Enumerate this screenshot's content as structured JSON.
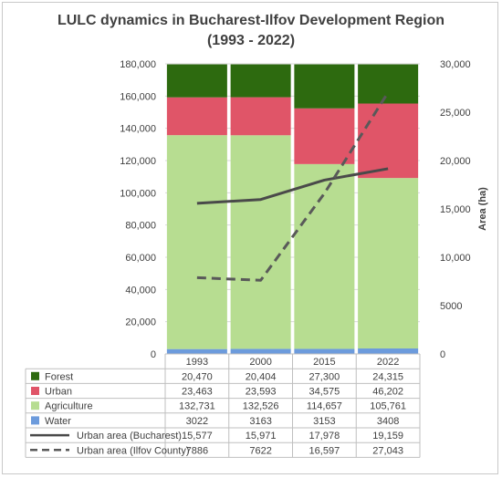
{
  "chart_data": {
    "type": "bar",
    "title": "LULC dynamics in Bucharest-Ilfov Development Region",
    "subtitle": "(1993 - 2022)",
    "categories": [
      "1993",
      "2000",
      "2015",
      "2022"
    ],
    "bar_series": [
      {
        "name": "Water",
        "values": [
          3022,
          3163,
          3153,
          3408
        ],
        "color": "#6c9bdc"
      },
      {
        "name": "Agriculture",
        "values": [
          132731,
          132526,
          114657,
          105761
        ],
        "color": "#b7dd91"
      },
      {
        "name": "Urban",
        "values": [
          23463,
          23593,
          34575,
          46202
        ],
        "color": "#e05568"
      },
      {
        "name": "Forest",
        "values": [
          20470,
          20404,
          27300,
          24315
        ],
        "color": "#2d6a0f"
      }
    ],
    "line_series": [
      {
        "name": "Urban area (Bucharest)",
        "values": [
          15577,
          15971,
          17978,
          19159
        ],
        "color": "#4a4a4a",
        "style": "solid",
        "axis": "right"
      },
      {
        "name": "Urban area (Ilfov County)",
        "values": [
          7886,
          7622,
          16597,
          27043
        ],
        "color": "#595959",
        "style": "dashed",
        "axis": "right"
      }
    ],
    "table_order": [
      "Forest",
      "Urban",
      "Agriculture",
      "Water",
      "Urban area (Bucharest)",
      "Urban area (Ilfov County)"
    ],
    "table_display": {
      "Forest": [
        "20,470",
        "20,404",
        "27,300",
        "24,315"
      ],
      "Urban": [
        "23,463",
        "23,593",
        "34,575",
        "46,202"
      ],
      "Agriculture": [
        "132,731",
        "132,526",
        "114,657",
        "105,761"
      ],
      "Water": [
        "3022",
        "3163",
        "3153",
        "3408"
      ],
      "Urban area (Bucharest)": [
        "15,577",
        "15,971",
        "17,978",
        "19,159"
      ],
      "Urban area (Ilfov County)": [
        "7886",
        "7622",
        "16,597",
        "27,043"
      ]
    },
    "y_left": {
      "min": 0,
      "max": 180000,
      "step": 20000,
      "tick_labels": [
        "0",
        "20,000",
        "40,000",
        "60,000",
        "80,000",
        "100,000",
        "120,000",
        "140,000",
        "160,000",
        "180,000"
      ]
    },
    "y_right": {
      "min": 0,
      "max": 30000,
      "step": 5000,
      "label": "Area (ha)",
      "tick_labels": [
        "0",
        "5000",
        "10,000",
        "15,000",
        "20,000",
        "25,000",
        "30,000"
      ]
    },
    "grid": true,
    "legend": "data-table-below"
  }
}
